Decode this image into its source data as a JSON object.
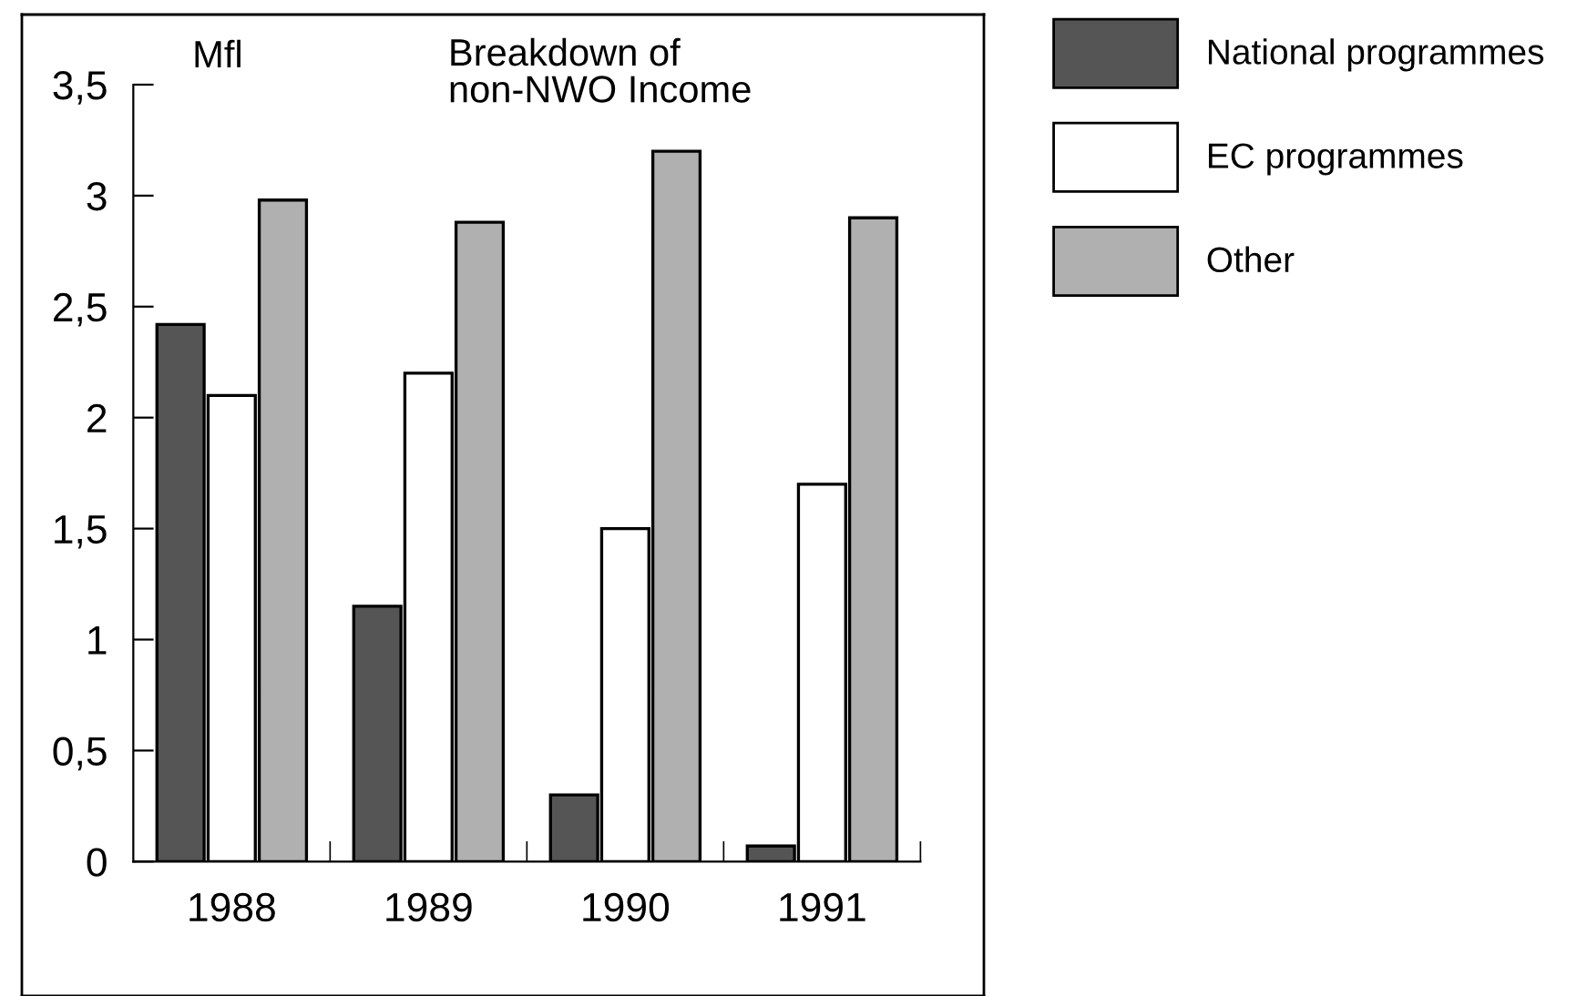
{
  "chart_data": {
    "type": "bar",
    "title": "Breakdown of\nnon-NWO Income",
    "ylabel": "Mfl",
    "categories": [
      "1988",
      "1989",
      "1990",
      "1991"
    ],
    "series": [
      {
        "name": "National programmes",
        "color": "#555555",
        "values": [
          2.42,
          1.15,
          0.3,
          0.07
        ]
      },
      {
        "name": "EC programmes",
        "color": "#ffffff",
        "values": [
          2.1,
          2.2,
          1.5,
          1.7
        ]
      },
      {
        "name": "Other",
        "color": "#b0b0b0",
        "values": [
          2.98,
          2.88,
          3.2,
          2.9
        ]
      }
    ],
    "ylim": [
      0,
      3.5
    ],
    "yticks": [
      {
        "value": 0,
        "label": "0"
      },
      {
        "value": 0.5,
        "label": "0,5"
      },
      {
        "value": 1,
        "label": "1"
      },
      {
        "value": 1.5,
        "label": "1,5"
      },
      {
        "value": 2,
        "label": "2"
      },
      {
        "value": 2.5,
        "label": "2,5"
      },
      {
        "value": 3,
        "label": "3"
      },
      {
        "value": 3.5,
        "label": "3,5"
      }
    ],
    "grid": false,
    "legend": "top right"
  }
}
